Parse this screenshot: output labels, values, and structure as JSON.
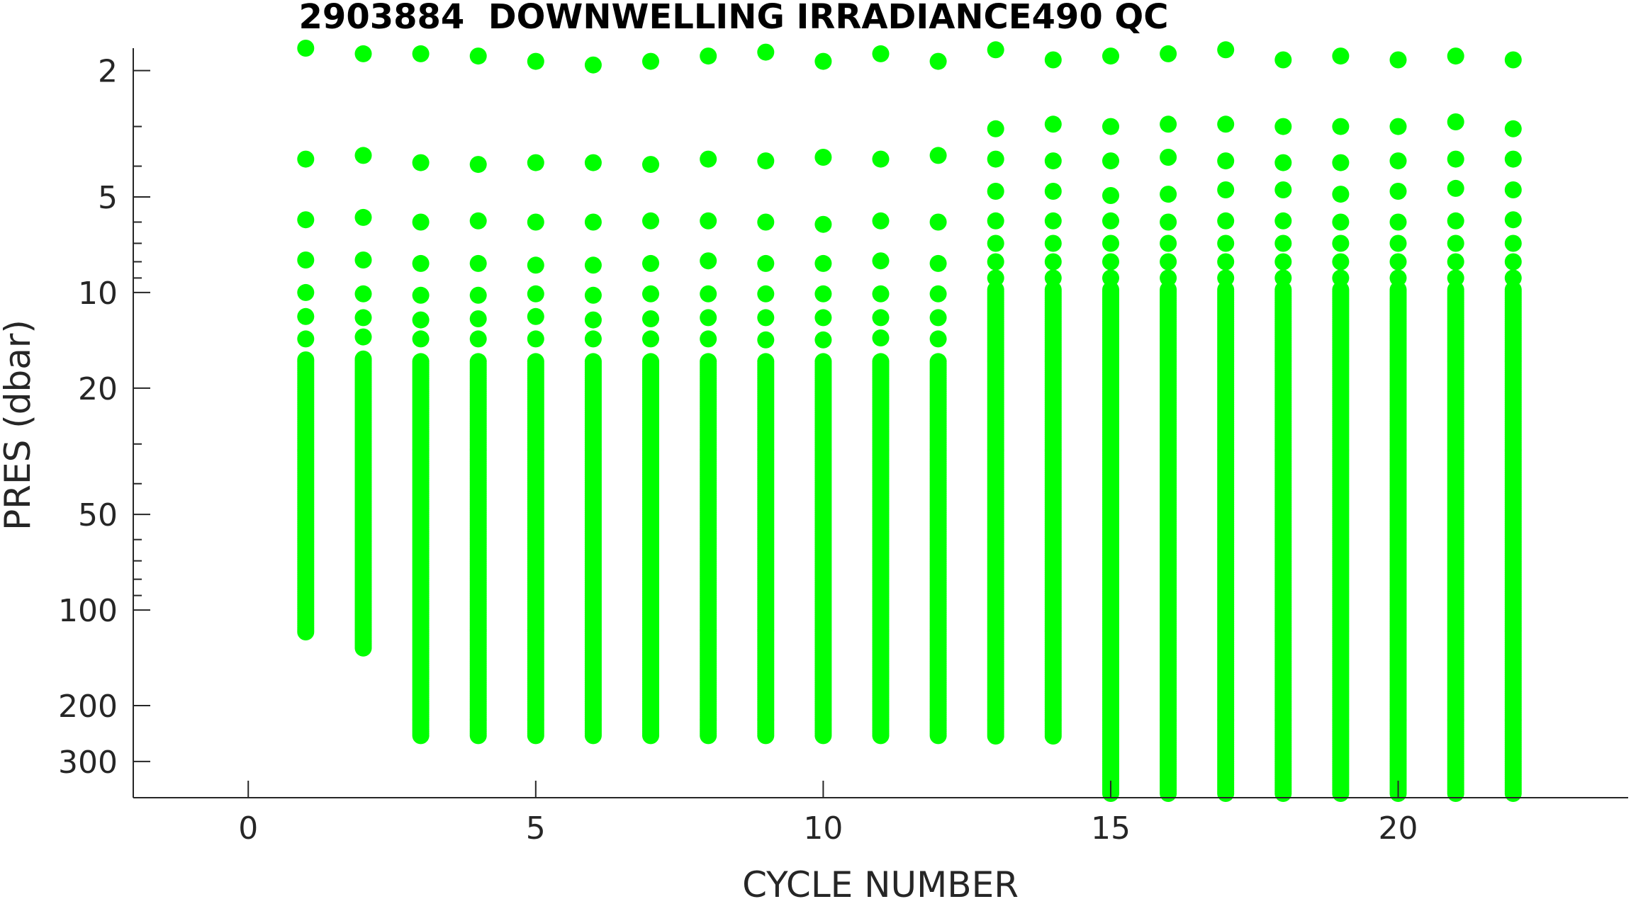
{
  "chart_data": {
    "type": "scatter",
    "title": "2903884  DOWNWELLING IRRADIANCE490 QC",
    "xlabel": "CYCLE NUMBER",
    "ylabel": "PRES (dbar)",
    "xlim": [
      -2,
      24
    ],
    "ylim": [
      1.7,
      390
    ],
    "y_scale": "log",
    "y_reversed": true,
    "grid": false,
    "marker_color": "#00ff00",
    "x_ticks": [
      0,
      5,
      10,
      15,
      20
    ],
    "y_ticks": [
      2,
      5,
      10,
      20,
      50,
      100,
      200,
      300
    ],
    "profiles": [
      {
        "cycle": 1,
        "shallow": [
          1.7,
          3.8,
          5.9,
          7.9,
          10.0,
          11.9,
          14.0
        ],
        "dense_top": 16.3,
        "max_pres": 118
      },
      {
        "cycle": 2,
        "shallow": [
          1.77,
          3.7,
          5.8,
          7.9,
          10.1,
          12.0,
          13.8
        ],
        "dense_top": 16.2,
        "max_pres": 132
      },
      {
        "cycle": 3,
        "shallow": [
          1.77,
          3.9,
          6.0,
          8.1,
          10.2,
          12.2,
          14.0
        ],
        "dense_top": 16.5,
        "max_pres": 252
      },
      {
        "cycle": 4,
        "shallow": [
          1.8,
          3.95,
          5.95,
          8.1,
          10.2,
          12.1,
          14.0
        ],
        "dense_top": 16.5,
        "max_pres": 252
      },
      {
        "cycle": 5,
        "shallow": [
          1.87,
          3.9,
          6.0,
          8.2,
          10.1,
          11.9,
          14.0
        ],
        "dense_top": 16.5,
        "max_pres": 252
      },
      {
        "cycle": 6,
        "shallow": [
          1.92,
          3.9,
          6.0,
          8.2,
          10.2,
          12.2,
          14.0
        ],
        "dense_top": 16.5,
        "max_pres": 252
      },
      {
        "cycle": 7,
        "shallow": [
          1.87,
          3.95,
          5.95,
          8.1,
          10.1,
          12.1,
          14.0
        ],
        "dense_top": 16.5,
        "max_pres": 252
      },
      {
        "cycle": 8,
        "shallow": [
          1.8,
          3.8,
          5.95,
          7.95,
          10.1,
          12.0,
          14.0
        ],
        "dense_top": 16.5,
        "max_pres": 252
      },
      {
        "cycle": 9,
        "shallow": [
          1.75,
          3.85,
          6.0,
          8.1,
          10.1,
          12.0,
          14.1
        ],
        "dense_top": 16.5,
        "max_pres": 252
      },
      {
        "cycle": 10,
        "shallow": [
          1.87,
          3.75,
          6.1,
          8.1,
          10.1,
          12.0,
          14.1
        ],
        "dense_top": 16.5,
        "max_pres": 252
      },
      {
        "cycle": 11,
        "shallow": [
          1.77,
          3.8,
          5.95,
          7.95,
          10.1,
          12.0,
          13.9
        ],
        "dense_top": 16.5,
        "max_pres": 252
      },
      {
        "cycle": 12,
        "shallow": [
          1.87,
          3.7,
          6.0,
          8.1,
          10.1,
          12.0,
          14.0
        ],
        "dense_top": 16.5,
        "max_pres": 252
      },
      {
        "cycle": 13,
        "shallow": [
          1.72,
          3.05,
          3.8,
          4.8,
          5.95,
          7.0,
          8.0,
          9.0
        ],
        "dense_top": 9.8,
        "max_pres": 252
      },
      {
        "cycle": 14,
        "shallow": [
          1.85,
          2.95,
          3.85,
          4.8,
          5.95,
          7.0,
          8.0,
          9.0
        ],
        "dense_top": 9.8,
        "max_pres": 252
      },
      {
        "cycle": 15,
        "shallow": [
          1.8,
          3.0,
          3.85,
          4.95,
          5.95,
          7.0,
          8.0,
          9.0
        ],
        "dense_top": 9.8,
        "max_pres": 380
      },
      {
        "cycle": 16,
        "shallow": [
          1.77,
          2.95,
          3.75,
          4.9,
          6.0,
          7.0,
          8.0,
          9.0
        ],
        "dense_top": 9.8,
        "max_pres": 380
      },
      {
        "cycle": 17,
        "shallow": [
          1.72,
          2.95,
          3.85,
          4.75,
          5.95,
          7.0,
          8.0,
          9.0
        ],
        "dense_top": 9.8,
        "max_pres": 380
      },
      {
        "cycle": 18,
        "shallow": [
          1.85,
          3.0,
          3.9,
          4.75,
          5.95,
          7.0,
          8.0,
          9.0
        ],
        "dense_top": 9.8,
        "max_pres": 380
      },
      {
        "cycle": 19,
        "shallow": [
          1.8,
          3.0,
          3.9,
          4.9,
          6.0,
          7.0,
          8.0,
          9.0
        ],
        "dense_top": 9.8,
        "max_pres": 380
      },
      {
        "cycle": 20,
        "shallow": [
          1.85,
          3.0,
          3.85,
          4.8,
          6.0,
          7.0,
          8.0,
          9.0
        ],
        "dense_top": 9.8,
        "max_pres": 380
      },
      {
        "cycle": 21,
        "shallow": [
          1.8,
          2.9,
          3.8,
          4.7,
          5.95,
          7.0,
          8.0,
          9.0
        ],
        "dense_top": 9.8,
        "max_pres": 380
      },
      {
        "cycle": 22,
        "shallow": [
          1.85,
          3.05,
          3.8,
          4.75,
          5.9,
          7.0,
          8.0,
          9.0
        ],
        "dense_top": 9.8,
        "max_pres": 380
      }
    ]
  }
}
